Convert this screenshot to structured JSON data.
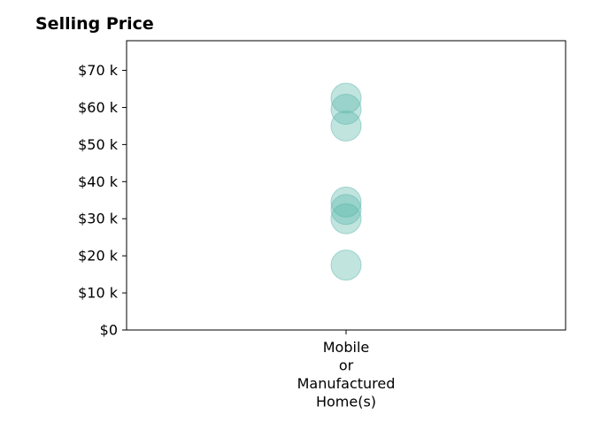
{
  "chart_data": {
    "type": "scatter",
    "title": "Selling Price",
    "xlabel": "",
    "ylabel": "",
    "categories": [
      "Mobile or Manufactured Home(s)"
    ],
    "category_label_lines": [
      [
        "Mobile",
        "or",
        "Manufactured",
        "Home(s)"
      ]
    ],
    "y_ticks": [
      {
        "value": 0,
        "label": "$0"
      },
      {
        "value": 10000,
        "label": "$10 k"
      },
      {
        "value": 20000,
        "label": "$20 k"
      },
      {
        "value": 30000,
        "label": "$30 k"
      },
      {
        "value": 40000,
        "label": "$40 k"
      },
      {
        "value": 50000,
        "label": "$50 k"
      },
      {
        "value": 60000,
        "label": "$60 k"
      },
      {
        "value": 70000,
        "label": "$70 k"
      }
    ],
    "ylim": [
      0,
      78000
    ],
    "grid": false,
    "series": [
      {
        "color": "#5bb8ab",
        "points": [
          {
            "x": "Mobile or Manufactured Home(s)",
            "y": 62500
          },
          {
            "x": "Mobile or Manufactured Home(s)",
            "y": 59500
          },
          {
            "x": "Mobile or Manufactured Home(s)",
            "y": 55000
          },
          {
            "x": "Mobile or Manufactured Home(s)",
            "y": 34500
          },
          {
            "x": "Mobile or Manufactured Home(s)",
            "y": 32500
          },
          {
            "x": "Mobile or Manufactured Home(s)",
            "y": 30000
          },
          {
            "x": "Mobile or Manufactured Home(s)",
            "y": 17500
          }
        ]
      }
    ]
  }
}
